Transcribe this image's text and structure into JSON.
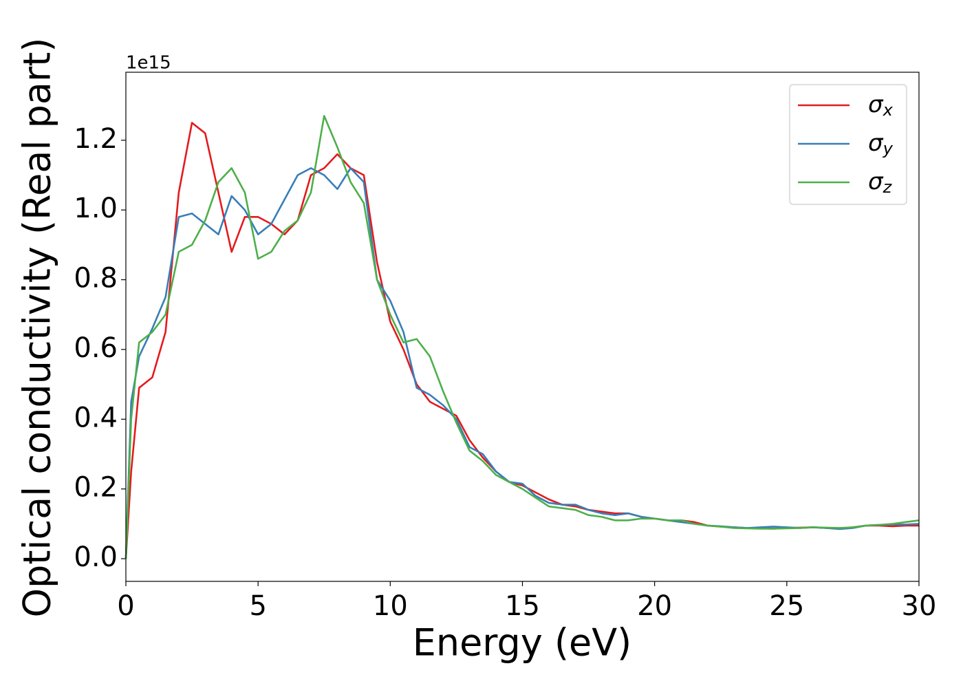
{
  "chart_data": {
    "type": "line",
    "x_label": "Energy (eV)",
    "y_label": "Optical conductivity (Real part)",
    "offset_label": "1e15",
    "xlim": [
      0,
      30
    ],
    "xticks": [
      0,
      5,
      10,
      15,
      20,
      25,
      30
    ],
    "ylim": [
      -0.065,
      1.395
    ],
    "yticks": [
      {
        "value": 0,
        "label": "0.0"
      },
      0.2,
      0.4,
      0.6,
      0.8,
      {
        "value": 1,
        "label": "1.0"
      },
      1.2
    ],
    "legend": "upper right",
    "x": [
      0,
      0.2,
      0.5,
      1,
      1.5,
      2,
      2.5,
      3,
      3.5,
      4,
      4.5,
      5,
      5.5,
      6,
      6.5,
      7,
      7.5,
      8,
      8.5,
      9,
      9.5,
      10,
      10.5,
      11,
      11.5,
      12,
      12.5,
      13,
      13.5,
      14,
      14.5,
      15,
      15.5,
      16,
      16.5,
      17,
      17.5,
      18,
      18.5,
      19,
      19.5,
      20,
      20.5,
      21,
      21.5,
      22,
      22.5,
      23,
      23.5,
      24,
      24.5,
      25,
      25.5,
      26,
      26.5,
      27,
      27.5,
      28,
      28.5,
      29,
      29.5,
      30
    ],
    "series": [
      {
        "name": "σx",
        "color": "#e41a1c",
        "values": [
          0,
          0.25,
          0.49,
          0.52,
          0.65,
          1.05,
          1.25,
          1.22,
          1.05,
          0.88,
          0.98,
          0.98,
          0.96,
          0.93,
          0.97,
          1.1,
          1.12,
          1.16,
          1.12,
          1.1,
          0.85,
          0.68,
          0.6,
          0.5,
          0.45,
          0.43,
          0.41,
          0.34,
          0.29,
          0.25,
          0.22,
          0.21,
          0.19,
          0.17,
          0.155,
          0.15,
          0.14,
          0.135,
          0.13,
          0.13,
          0.12,
          0.115,
          0.11,
          0.11,
          0.105,
          0.095,
          0.092,
          0.09,
          0.088,
          0.087,
          0.086,
          0.088,
          0.089,
          0.09,
          0.088,
          0.086,
          0.09,
          0.095,
          0.095,
          0.093,
          0.095,
          0.095
        ]
      },
      {
        "name": "σy",
        "color": "#377eb8",
        "values": [
          0,
          0.45,
          0.58,
          0.66,
          0.75,
          0.98,
          0.99,
          0.96,
          0.93,
          1.04,
          1.0,
          0.93,
          0.96,
          1.03,
          1.1,
          1.12,
          1.1,
          1.06,
          1.12,
          1.08,
          0.8,
          0.74,
          0.65,
          0.49,
          0.47,
          0.44,
          0.4,
          0.32,
          0.3,
          0.25,
          0.22,
          0.215,
          0.18,
          0.16,
          0.155,
          0.155,
          0.14,
          0.13,
          0.125,
          0.13,
          0.12,
          0.115,
          0.11,
          0.105,
          0.1,
          0.095,
          0.093,
          0.09,
          0.088,
          0.09,
          0.092,
          0.09,
          0.088,
          0.09,
          0.088,
          0.085,
          0.088,
          0.095,
          0.097,
          0.098,
          0.098,
          0.1
        ]
      },
      {
        "name": "σz",
        "color": "#4daf4a",
        "values": [
          0,
          0.4,
          0.62,
          0.65,
          0.7,
          0.88,
          0.9,
          0.97,
          1.08,
          1.12,
          1.05,
          0.86,
          0.88,
          0.94,
          0.97,
          1.05,
          1.27,
          1.18,
          1.08,
          1.02,
          0.8,
          0.7,
          0.62,
          0.63,
          0.58,
          0.48,
          0.39,
          0.31,
          0.28,
          0.24,
          0.22,
          0.2,
          0.175,
          0.15,
          0.145,
          0.14,
          0.125,
          0.12,
          0.11,
          0.11,
          0.115,
          0.115,
          0.11,
          0.11,
          0.1,
          0.095,
          0.092,
          0.088,
          0.087,
          0.086,
          0.086,
          0.087,
          0.088,
          0.09,
          0.089,
          0.088,
          0.09,
          0.095,
          0.097,
          0.1,
          0.105,
          0.11
        ]
      }
    ]
  }
}
